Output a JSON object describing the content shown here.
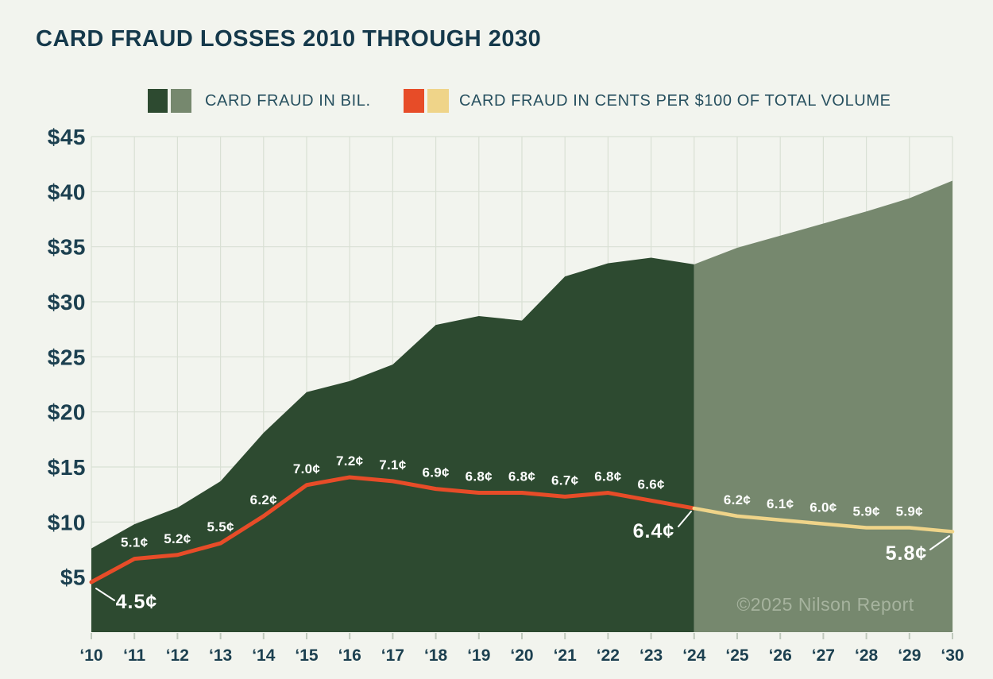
{
  "header": {
    "title": "CARD FRAUD LOSSES 2010 THROUGH 2030"
  },
  "legend": {
    "items": [
      {
        "label": "CARD FRAUD IN BIL.",
        "swatches": [
          "#2D4A30",
          "#76886E"
        ]
      },
      {
        "label": "CARD FRAUD IN CENTS PER $100 OF TOTAL VOLUME",
        "swatches": [
          "#E74C28",
          "#EFD489"
        ]
      }
    ]
  },
  "colors": {
    "background": "#F2F4EE",
    "title_text": "#15394B",
    "axis_text": "#1C4050",
    "grid": "#D9E0D4",
    "tick": "#BFC9BC",
    "area_historical": "#2D4A30",
    "area_forecast": "#76886E",
    "line_historical": "#E74C28",
    "line_forecast": "#EFD489",
    "point_label": "#FFFFFF",
    "watermark": "#A6B39E"
  },
  "chart_data": {
    "type": "area",
    "title": "CARD FRAUD LOSSES 2010 THROUGH 2030",
    "xlabel": "",
    "ylabel": "",
    "ylim": [
      0,
      45
    ],
    "grid": true,
    "legend_position": "top",
    "y_ticks": [
      "$5",
      "$10",
      "$15",
      "$20",
      "$25",
      "$30",
      "$35",
      "$40",
      "$45"
    ],
    "years": [
      "‘10",
      "‘11",
      "‘12",
      "‘13",
      "‘14",
      "‘15",
      "‘16",
      "‘17",
      "‘18",
      "‘19",
      "‘20",
      "‘21",
      "‘22",
      "‘23",
      "‘24",
      "‘25",
      "‘26",
      "‘27",
      "‘28",
      "‘29",
      "‘30"
    ],
    "forecast_start_year": "‘24",
    "series": [
      {
        "name": "CARD FRAUD IN BIL.",
        "type": "area",
        "unit": "$ billions",
        "split_index": 14,
        "values": [
          7.6,
          9.8,
          11.3,
          13.7,
          18.1,
          21.8,
          22.8,
          24.3,
          27.9,
          28.7,
          28.3,
          32.3,
          33.5,
          34.0,
          33.4,
          34.9,
          36.0,
          37.1,
          38.2,
          39.4,
          41.0
        ]
      },
      {
        "name": "CARD FRAUD IN CENTS PER $100 OF TOTAL VOLUME",
        "type": "line",
        "unit": "¢",
        "split_index": 14,
        "values": [
          4.5,
          5.1,
          5.2,
          5.5,
          6.2,
          7.0,
          7.2,
          7.1,
          6.9,
          6.8,
          6.8,
          6.7,
          6.8,
          6.6,
          6.4,
          6.2,
          6.1,
          6.0,
          5.9,
          5.9,
          5.8
        ],
        "labels": [
          "4.5¢",
          "5.1¢",
          "5.2¢",
          "5.5¢",
          "6.2¢",
          "7.0¢",
          "7.2¢",
          "7.1¢",
          "6.9¢",
          "6.8¢",
          "6.8¢",
          "6.7¢",
          "6.8¢",
          "6.6¢",
          "6.4¢",
          "6.2¢",
          "6.1¢",
          "6.0¢",
          "5.9¢",
          "5.9¢",
          "5.8¢"
        ],
        "major_label_indices": [
          0,
          14,
          20
        ]
      }
    ],
    "watermark": "©2025 Nilson Report"
  }
}
